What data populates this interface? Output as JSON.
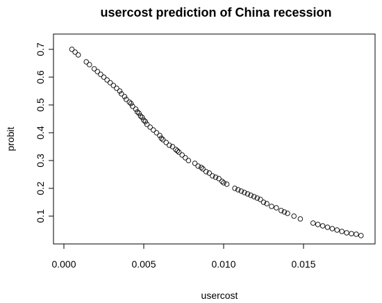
{
  "chart_data": {
    "type": "scatter",
    "title": "usercost prediction of China recession",
    "xlabel": "usercost",
    "ylabel": "probit",
    "xlim": [
      0.0,
      0.0188
    ],
    "ylim": [
      0.0,
      0.72
    ],
    "x_ticks": [
      0.0,
      0.005,
      0.01,
      0.015
    ],
    "x_tick_labels": [
      "0.000",
      "0.005",
      "0.010",
      "0.015"
    ],
    "y_ticks": [
      0.1,
      0.2,
      0.3,
      0.4,
      0.5,
      0.6,
      0.7
    ],
    "y_tick_labels": [
      "0.1",
      "0.2",
      "0.3",
      "0.4",
      "0.5",
      "0.6",
      "0.7"
    ],
    "grid": false,
    "marker": "open-circle",
    "series": [
      {
        "x": [
          0.0005,
          0.0007,
          0.0009,
          0.0014,
          0.0016,
          0.0019,
          0.0021,
          0.0023,
          0.0025,
          0.0027,
          0.0029,
          0.0031,
          0.0033,
          0.0035,
          0.0036,
          0.0038,
          0.0039,
          0.0041,
          0.0042,
          0.0043,
          0.0045,
          0.0046,
          0.0047,
          0.0048,
          0.0049,
          0.005,
          0.0051,
          0.0052,
          0.0054,
          0.0056,
          0.0058,
          0.006,
          0.0061,
          0.0062,
          0.0064,
          0.0066,
          0.0068,
          0.007,
          0.0071,
          0.0072,
          0.0074,
          0.0076,
          0.0078,
          0.0082,
          0.0084,
          0.0086,
          0.0087,
          0.0089,
          0.0091,
          0.0093,
          0.0095,
          0.0097,
          0.0099,
          0.01,
          0.0102,
          0.0107,
          0.0109,
          0.0111,
          0.0113,
          0.0115,
          0.0117,
          0.0119,
          0.0121,
          0.0123,
          0.0125,
          0.0127,
          0.013,
          0.0133,
          0.0136,
          0.0138,
          0.014,
          0.0144,
          0.0148,
          0.0156,
          0.0159,
          0.0162,
          0.0165,
          0.0168,
          0.0171,
          0.0174,
          0.0177,
          0.018,
          0.0183,
          0.0186
        ],
        "y": [
          0.7,
          0.69,
          0.68,
          0.655,
          0.645,
          0.63,
          0.62,
          0.61,
          0.6,
          0.59,
          0.58,
          0.57,
          0.56,
          0.55,
          0.54,
          0.53,
          0.52,
          0.51,
          0.505,
          0.495,
          0.485,
          0.475,
          0.47,
          0.46,
          0.455,
          0.445,
          0.44,
          0.43,
          0.42,
          0.41,
          0.4,
          0.39,
          0.38,
          0.375,
          0.365,
          0.355,
          0.35,
          0.34,
          0.335,
          0.33,
          0.32,
          0.31,
          0.3,
          0.29,
          0.28,
          0.275,
          0.27,
          0.26,
          0.255,
          0.245,
          0.24,
          0.235,
          0.225,
          0.22,
          0.215,
          0.2,
          0.195,
          0.19,
          0.185,
          0.18,
          0.175,
          0.17,
          0.165,
          0.16,
          0.15,
          0.145,
          0.135,
          0.13,
          0.12,
          0.115,
          0.11,
          0.1,
          0.09,
          0.075,
          0.07,
          0.065,
          0.06,
          0.055,
          0.05,
          0.045,
          0.04,
          0.037,
          0.035,
          0.03
        ]
      }
    ]
  }
}
